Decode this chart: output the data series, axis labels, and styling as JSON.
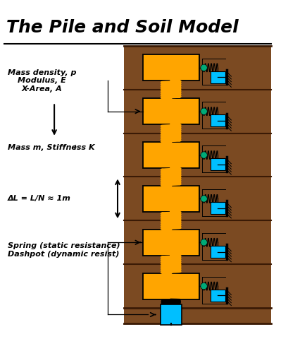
{
  "title": "The Pile and Soil Model",
  "title_fontsize": 18,
  "bg_color": "#ffffff",
  "soil_color": "#7B4A22",
  "soil_line_color": "#3A1A05",
  "pile_color": "#FFA500",
  "pile_border": "#000000",
  "spring_color_orange": "#FFA500",
  "spring_color_black": "#000000",
  "dashpot_color": "#00BFFF",
  "dot_color": "#00AA77",
  "n_segments": 6,
  "label1_text": "Mass density, p\nModulus, E\nX-Area, A",
  "label2_text": "Mass m, Stiffness K",
  "label2_sub": "i",
  "label3_text": "ΔL = L/N ≈ 1m",
  "label4_text": "Spring (static resistance)\nDashpot (dynamic resist)"
}
